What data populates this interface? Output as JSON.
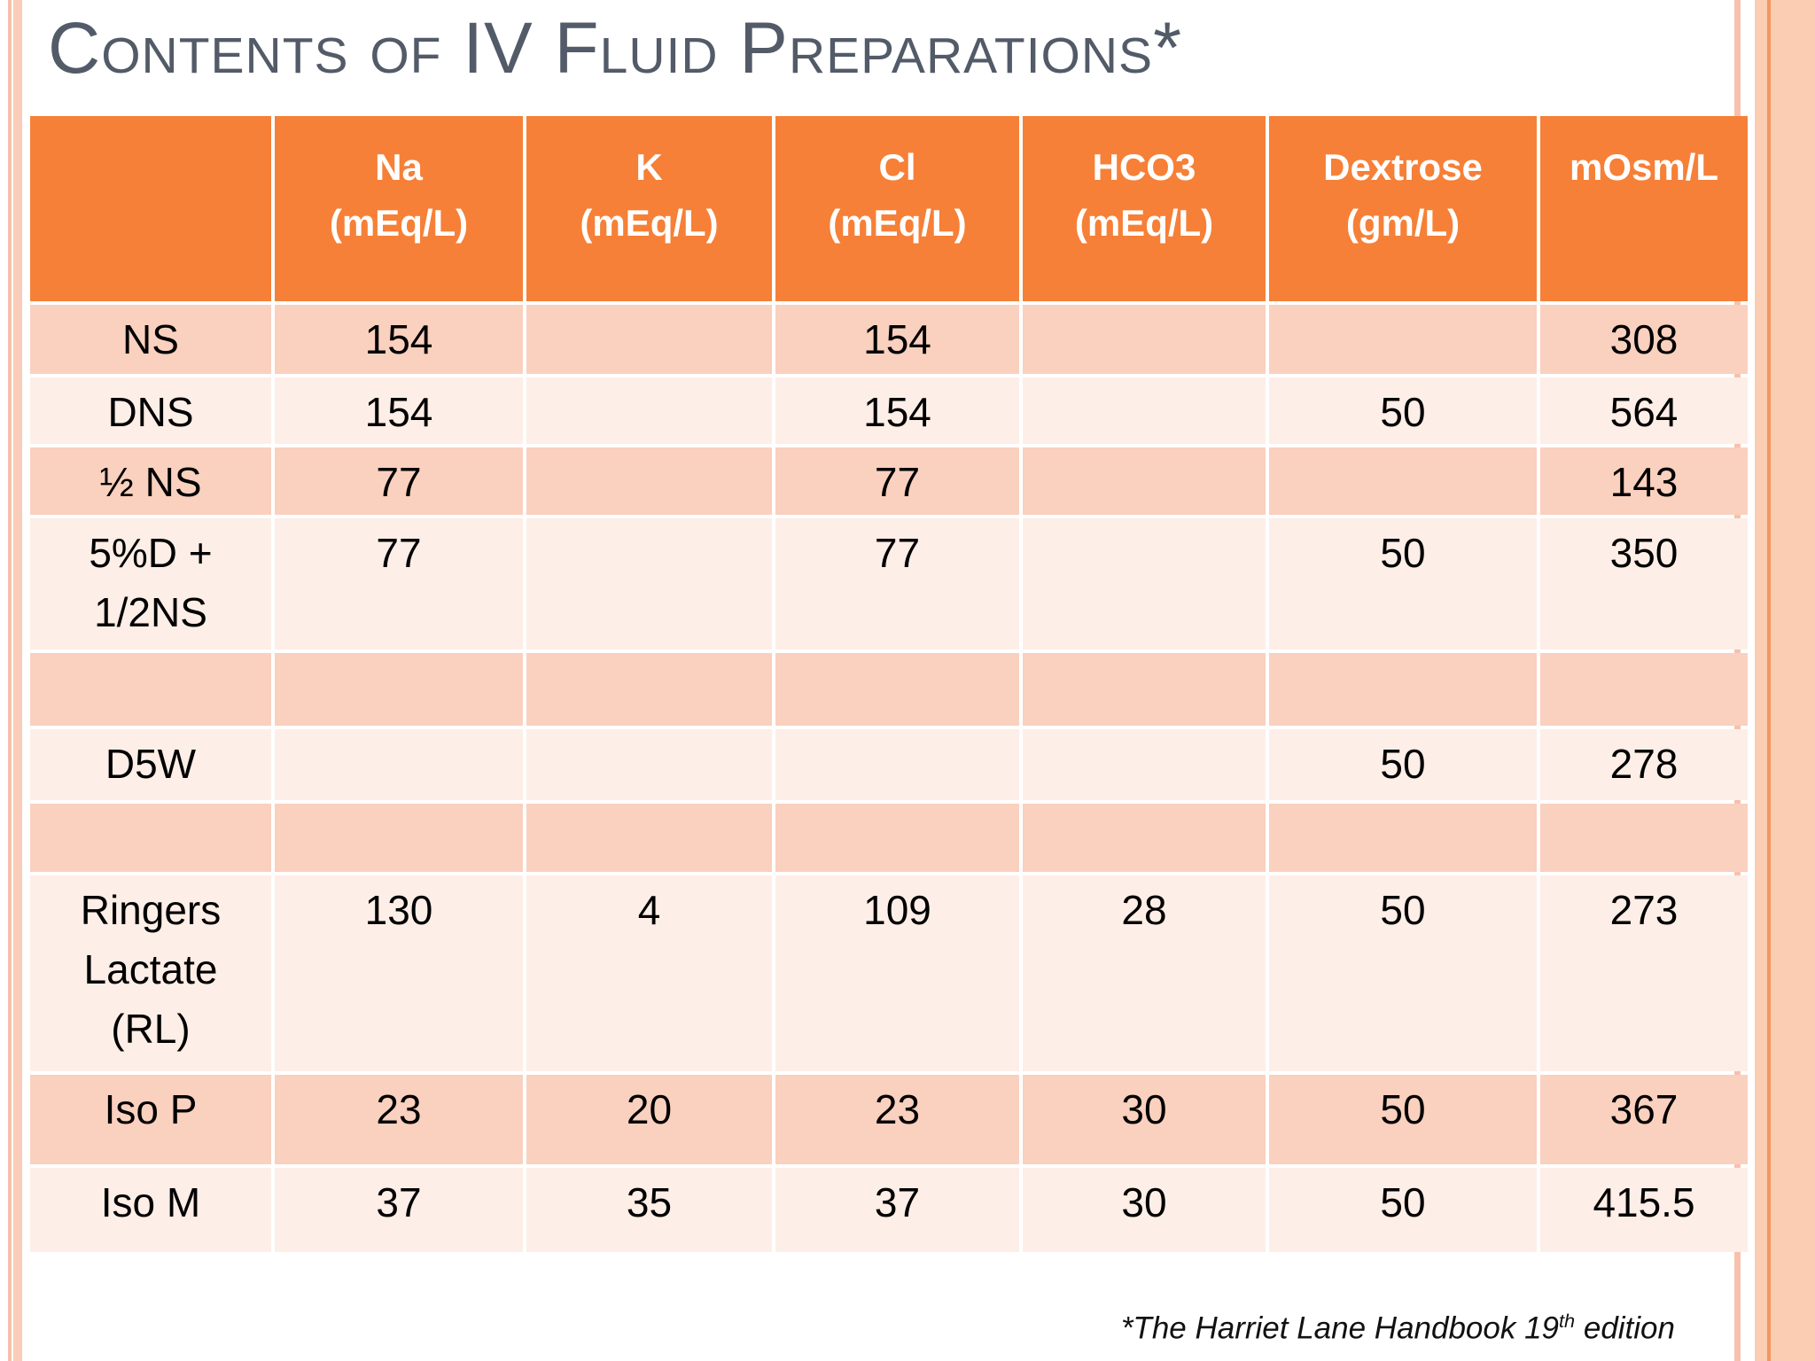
{
  "slide": {
    "title": "Contents of IV Fluid Preparations*",
    "footnote": {
      "text_before_sup": "*The  Harriet Lane Handbook 19",
      "sup": "th",
      "text_after_sup": " edition"
    }
  },
  "table": {
    "header": [
      "",
      "Na\n(mEq/L)",
      "K\n(mEq/L)",
      "Cl\n(mEq/L)",
      "HCO3\n(mEq/L)",
      "Dextrose\n(gm/L)",
      "mOsm/L"
    ],
    "rows": [
      {
        "label": "NS",
        "values": [
          "154",
          "",
          "154",
          "",
          "",
          "308"
        ]
      },
      {
        "label": "DNS",
        "values": [
          "154",
          "",
          "154",
          "",
          "50",
          "564"
        ]
      },
      {
        "label": "½ NS",
        "values": [
          "77",
          "",
          "77",
          "",
          "",
          "143"
        ]
      },
      {
        "label": "5%D +\n1/2NS",
        "values": [
          "77",
          "",
          "77",
          "",
          "50",
          "350"
        ]
      },
      {
        "label": "",
        "values": [
          "",
          "",
          "",
          "",
          "",
          ""
        ]
      },
      {
        "label": "D5W",
        "values": [
          "",
          "",
          "",
          "",
          "50",
          "278"
        ]
      },
      {
        "label": "",
        "values": [
          "",
          "",
          "",
          "",
          "",
          ""
        ]
      },
      {
        "label": "Ringers\nLactate\n(RL)",
        "values": [
          "130",
          "4",
          "109",
          "28",
          "50",
          "273"
        ]
      },
      {
        "label": "Iso P",
        "values": [
          "23",
          "20",
          "23",
          "30",
          "50",
          "367"
        ]
      },
      {
        "label": "Iso M",
        "values": [
          "37",
          "35",
          "37",
          "30",
          "50",
          "415.5"
        ]
      }
    ]
  },
  "colors": {
    "header_orange": "#f68037",
    "row_dark_pink": "#fad0be",
    "row_light_pink": "#fdeee7",
    "title_gray": "#535a68",
    "frame_pink_thin": "#f5bfab",
    "frame_pink_wide": "#f9cdb9",
    "frame_band": "#fbcdb3",
    "frame_band_line": "#f29760"
  }
}
